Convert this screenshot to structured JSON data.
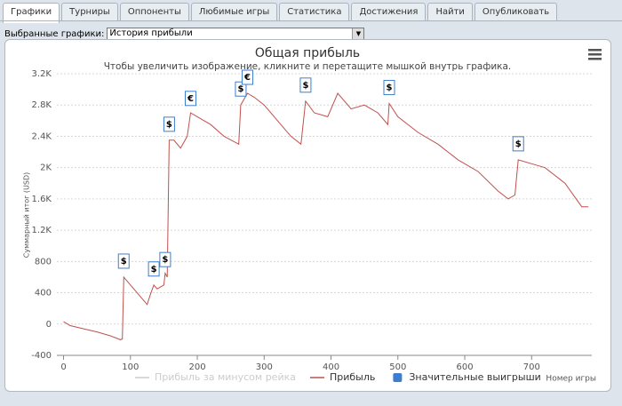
{
  "tabs": [
    "Графики",
    "Турниры",
    "Оппоненты",
    "Любимые игры",
    "Статистика",
    "Достижения",
    "Найти",
    "Опубликовать"
  ],
  "active_tab": 0,
  "selector": {
    "label": "Выбранные графики:",
    "value": "История прибыли"
  },
  "chart_data": {
    "type": "line",
    "title": "Общая прибыль",
    "subtitle": "Чтобы увеличить изображение, кликните и перетащите мышкой внутрь графика.",
    "x_label": "Номер игры",
    "y_label": "Суммарный итог (USD)",
    "xlim": [
      -10,
      790
    ],
    "ylim": [
      -400,
      3200
    ],
    "xticks": [
      0,
      100,
      200,
      300,
      400,
      500,
      600,
      700
    ],
    "yticks": [
      -400,
      0,
      400,
      800,
      {
        "value": 1200,
        "label": "1.2K"
      },
      {
        "value": 1600,
        "label": "1.6K"
      },
      {
        "value": 2000,
        "label": "2K"
      },
      {
        "value": 2400,
        "label": "2.4K"
      },
      {
        "value": 2800,
        "label": "2.8K"
      },
      {
        "value": 3200,
        "label": "3.2K"
      }
    ],
    "grid": true,
    "series": [
      {
        "name": "Прибыль за минусом рейка",
        "color": "#cccccc",
        "visible": false
      },
      {
        "name": "Прибыль",
        "color": "#c0504d",
        "x": [
          0,
          10,
          30,
          50,
          70,
          85,
          88,
          90,
          100,
          110,
          125,
          130,
          135,
          140,
          150,
          152,
          155,
          158,
          165,
          175,
          185,
          190,
          200,
          220,
          240,
          262,
          265,
          275,
          285,
          300,
          320,
          340,
          355,
          362,
          375,
          395,
          410,
          430,
          450,
          470,
          485,
          487,
          500,
          530,
          560,
          590,
          620,
          650,
          665,
          675,
          680,
          700,
          720,
          750,
          775,
          785
        ],
        "values": [
          30,
          -20,
          -60,
          -100,
          -150,
          -200,
          -190,
          600,
          500,
          400,
          250,
          380,
          500,
          450,
          500,
          650,
          600,
          2350,
          2350,
          2250,
          2400,
          2700,
          2650,
          2550,
          2400,
          2300,
          2800,
          2950,
          2900,
          2800,
          2600,
          2400,
          2300,
          2850,
          2700,
          2650,
          2950,
          2750,
          2800,
          2700,
          2550,
          2820,
          2650,
          2450,
          2300,
          2100,
          1950,
          1700,
          1600,
          1650,
          2100,
          2050,
          2000,
          1800,
          1500,
          1500
        ]
      },
      {
        "name": "Значительные выигрыши",
        "color": "#3c7fd0",
        "x": [
          90,
          135,
          152,
          158,
          190,
          265,
          275,
          362,
          487,
          680
        ],
        "values": [
          600,
          500,
          620,
          2350,
          2680,
          2800,
          2950,
          2850,
          2820,
          2100
        ],
        "flag_labels": [
          "$",
          "$",
          "$",
          "$",
          "€",
          "$",
          "€",
          "$",
          "$",
          "$"
        ]
      }
    ]
  }
}
